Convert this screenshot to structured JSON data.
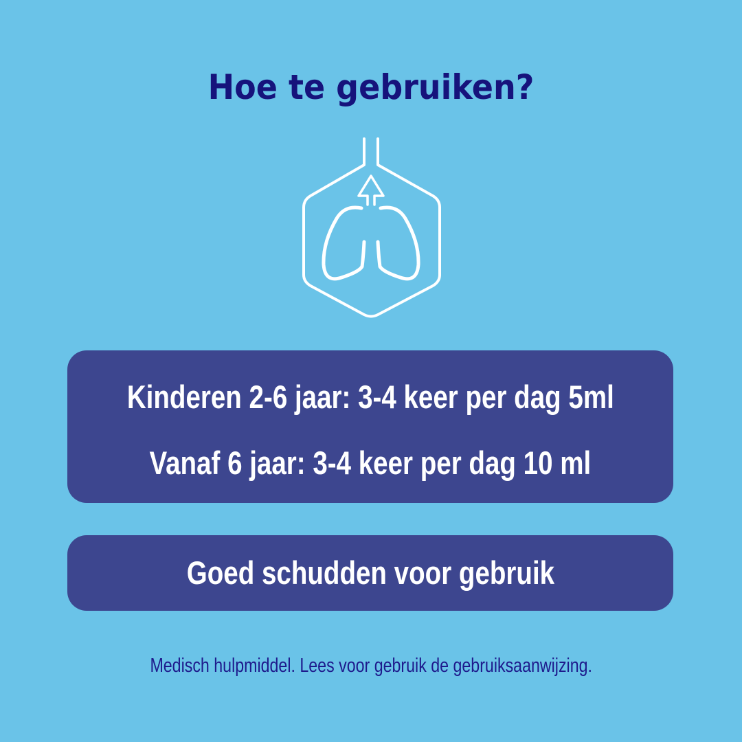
{
  "title": "Hoe te gebruiken?",
  "icon": "lungs-exhale-hexagon-icon",
  "colors": {
    "background": "#6ac3e8",
    "title": "#16137c",
    "box": "#3d468f",
    "box_text": "#ffffff",
    "footer": "#1e1a8c"
  },
  "dosage": {
    "children": "Kinderen 2-6 jaar: 3-4 keer per dag 5ml",
    "from_six": "Vanaf 6 jaar: 3-4 keer per dag 10 ml"
  },
  "instruction": "Goed schudden voor gebruik",
  "footer": "Medisch hulpmiddel. Lees voor gebruik de gebruiksaanwijzing."
}
